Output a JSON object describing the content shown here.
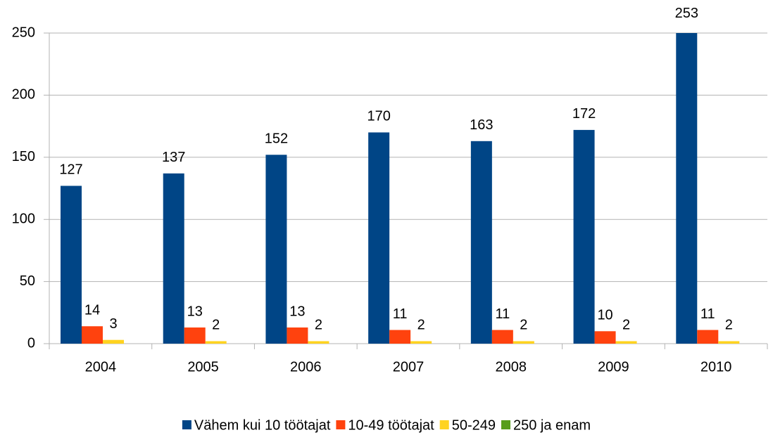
{
  "chart_data": {
    "type": "bar",
    "categories": [
      "2004",
      "2005",
      "2006",
      "2007",
      "2008",
      "2009",
      "2010"
    ],
    "series": [
      {
        "name": "Vähem kui 10 töötajat",
        "color": "#004586",
        "values": [
          127,
          137,
          152,
          170,
          163,
          172,
          253
        ]
      },
      {
        "name": "10-49 töötajat",
        "color": "#ff420e",
        "values": [
          14,
          13,
          13,
          11,
          11,
          10,
          11
        ]
      },
      {
        "name": "50-249",
        "color": "#ffd320",
        "values": [
          3,
          2,
          2,
          2,
          2,
          2,
          2
        ]
      },
      {
        "name": "250 ja enam",
        "color": "#579d1c",
        "values": [
          0,
          0,
          0,
          0,
          0,
          0,
          0
        ]
      }
    ],
    "ylim": [
      0,
      250
    ],
    "yticks": [
      0,
      50,
      100,
      150,
      200,
      250
    ],
    "grid": true,
    "legend": "bottom"
  }
}
